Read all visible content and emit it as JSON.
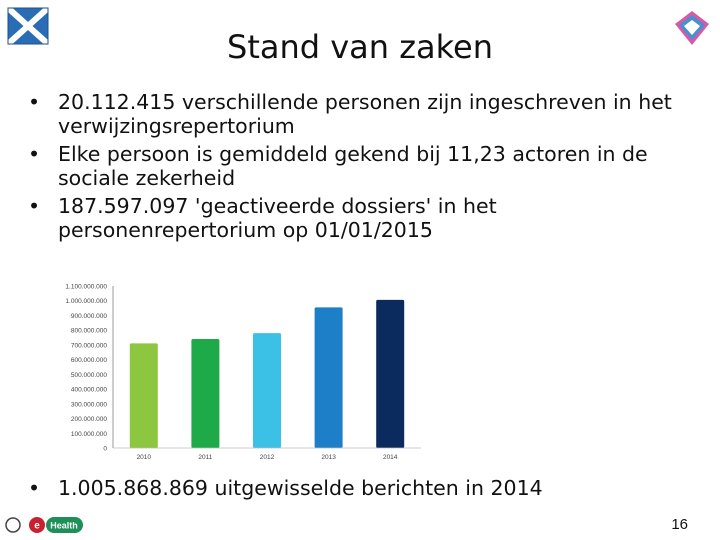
{
  "slide": {
    "title": "Stand van zaken",
    "bullet_char": "•",
    "bullets": [
      "20.112.415 verschillende personen zijn ingeschreven in het verwijzingsrepertorium",
      "Elke persoon is gemiddeld gekend bij 11,23 actoren in de sociale zekerheid",
      "187.597.097  'geactiveerde dossiers' in het personenrepertorium op 01/01/2015"
    ],
    "bottom_bullet": "1.005.868.869 uitgewisselde berichten in 2014",
    "page_number": "16",
    "footer_logo_text": "Health",
    "footer_logo_e": "e"
  },
  "chart_data": {
    "type": "bar",
    "categories": [
      "2010",
      "2011",
      "2012",
      "2013",
      "2014"
    ],
    "values": [
      710000000,
      740000000,
      780000000,
      955000000,
      1005868869
    ],
    "ylim": [
      0,
      1100000000
    ],
    "yticks": [
      "1.100.000.000",
      "1.000.000.000",
      "900.000.000",
      "800.000.000",
      "700.000.000",
      "600.000.000",
      "500.000.000",
      "400.000.000",
      "300.000.000",
      "200.000.000",
      "100.000.000",
      "0"
    ],
    "bar_colors": [
      "#8dc63f",
      "#1faa4a",
      "#3cc1e6",
      "#1e7fc9",
      "#0b2a5e"
    ],
    "grid": false
  }
}
